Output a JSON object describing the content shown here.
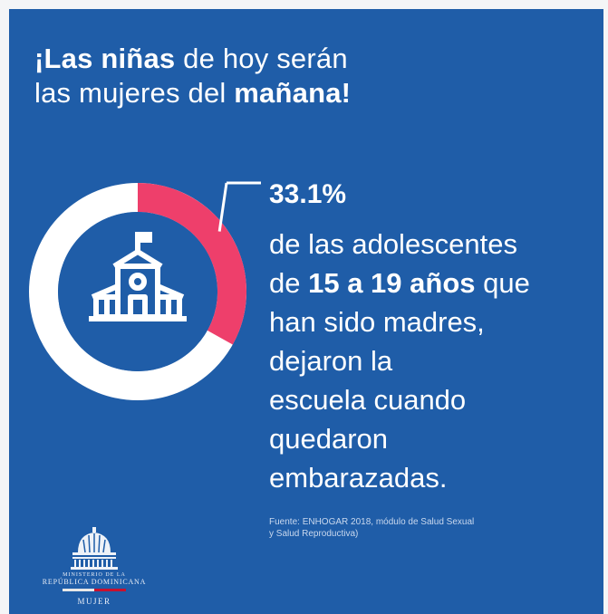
{
  "headline": {
    "part1_bold": "¡Las niñas",
    "part2": " de hoy serán",
    "part3": "las mujeres del ",
    "part4_bold": "mañana!"
  },
  "statistic": {
    "value": "33.1%",
    "fraction": 0.331,
    "ring_color": "#ee3f6b",
    "track_color": "#ffffff"
  },
  "description": {
    "line1": "de las adolescentes",
    "line2_pre": "de ",
    "line2_bold": "15 a 19 años",
    "line2_post": " que",
    "line3": "han sido madres,",
    "line4": "dejaron la",
    "line5": "escuela cuando",
    "line6": "quedaron",
    "line7": "embarazadas."
  },
  "source": {
    "line1": "Fuente: ENHOGAR 2018, módulo de Salud Sexual",
    "line2": "y Salud Reproductiva)"
  },
  "logo": {
    "line1": "MINISTERIO DE LA",
    "line2": "REPÚBLICA DOMINICANA",
    "line3": "MUJER"
  },
  "icons": {
    "center": "school-building-icon",
    "logo": "capitol-dome-icon"
  },
  "colors": {
    "background": "#1f5da8",
    "accent": "#ee3f6b",
    "inner_circle": "#1f5da8"
  }
}
